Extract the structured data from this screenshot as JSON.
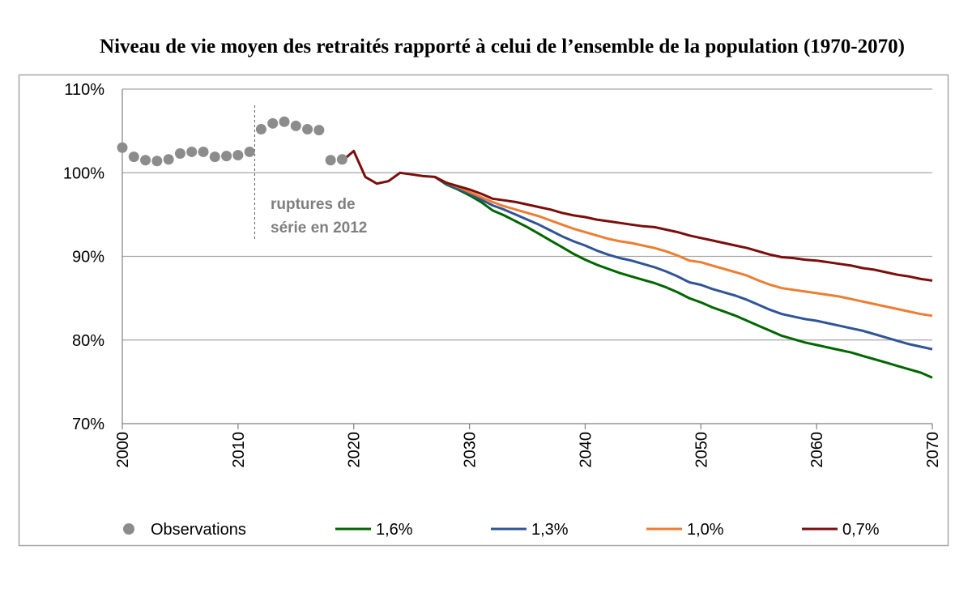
{
  "chart_data": {
    "type": "line",
    "title": "Niveau de vie moyen des retraités rapporté à celui de l’ensemble de la population (1970-2070)",
    "xlabel": "",
    "ylabel": "",
    "xlim": [
      2000,
      2070
    ],
    "ylim": [
      70,
      110
    ],
    "x_ticks": [
      "2000",
      "2010",
      "2020",
      "2030",
      "2040",
      "2050",
      "2060",
      "2070"
    ],
    "y_ticks": [
      "70%",
      "80%",
      "90%",
      "100%",
      "110%"
    ],
    "grid": "horizontal",
    "legend_position": "bottom",
    "annotation": {
      "lines": [
        "ruptures de",
        "série en 2012"
      ],
      "x": 2012
    },
    "observations": {
      "name": "Observations",
      "color": "#8c8c8c",
      "points": [
        [
          2000,
          103.0
        ],
        [
          2001,
          101.9
        ],
        [
          2002,
          101.5
        ],
        [
          2003,
          101.4
        ],
        [
          2004,
          101.6
        ],
        [
          2005,
          102.3
        ],
        [
          2006,
          102.5
        ],
        [
          2007,
          102.5
        ],
        [
          2008,
          101.9
        ],
        [
          2009,
          102.0
        ],
        [
          2010,
          102.1
        ],
        [
          2011,
          102.5
        ],
        [
          2012,
          105.2
        ],
        [
          2013,
          105.9
        ],
        [
          2014,
          106.1
        ],
        [
          2015,
          105.6
        ],
        [
          2016,
          105.2
        ],
        [
          2017,
          105.1
        ],
        [
          2018,
          101.5
        ],
        [
          2019,
          101.6
        ]
      ]
    },
    "series": [
      {
        "name": "1,6%",
        "color": "#006600",
        "points": [
          [
            2027,
            99.5
          ],
          [
            2028,
            98.6
          ],
          [
            2029,
            98.0
          ],
          [
            2030,
            97.3
          ],
          [
            2031,
            96.5
          ],
          [
            2032,
            95.5
          ],
          [
            2033,
            94.9
          ],
          [
            2034,
            94.2
          ],
          [
            2035,
            93.5
          ],
          [
            2036,
            92.7
          ],
          [
            2037,
            91.9
          ],
          [
            2038,
            91.1
          ],
          [
            2039,
            90.3
          ],
          [
            2040,
            89.6
          ],
          [
            2041,
            89.0
          ],
          [
            2042,
            88.5
          ],
          [
            2043,
            88.0
          ],
          [
            2044,
            87.6
          ],
          [
            2045,
            87.2
          ],
          [
            2046,
            86.8
          ],
          [
            2047,
            86.3
          ],
          [
            2048,
            85.7
          ],
          [
            2049,
            85.0
          ],
          [
            2050,
            84.5
          ],
          [
            2051,
            83.9
          ],
          [
            2052,
            83.4
          ],
          [
            2053,
            82.9
          ],
          [
            2054,
            82.3
          ],
          [
            2055,
            81.7
          ],
          [
            2056,
            81.1
          ],
          [
            2057,
            80.5
          ],
          [
            2058,
            80.1
          ],
          [
            2059,
            79.7
          ],
          [
            2060,
            79.4
          ],
          [
            2061,
            79.1
          ],
          [
            2062,
            78.8
          ],
          [
            2063,
            78.5
          ],
          [
            2064,
            78.1
          ],
          [
            2065,
            77.7
          ],
          [
            2066,
            77.3
          ],
          [
            2067,
            76.9
          ],
          [
            2068,
            76.5
          ],
          [
            2069,
            76.1
          ],
          [
            2070,
            75.5
          ]
        ]
      },
      {
        "name": "1,3%",
        "color": "#2f5597",
        "points": [
          [
            2027,
            99.5
          ],
          [
            2028,
            98.7
          ],
          [
            2029,
            98.1
          ],
          [
            2030,
            97.5
          ],
          [
            2031,
            96.8
          ],
          [
            2032,
            96.1
          ],
          [
            2033,
            95.6
          ],
          [
            2034,
            95.0
          ],
          [
            2035,
            94.4
          ],
          [
            2036,
            93.8
          ],
          [
            2037,
            93.1
          ],
          [
            2038,
            92.4
          ],
          [
            2039,
            91.8
          ],
          [
            2040,
            91.3
          ],
          [
            2041,
            90.7
          ],
          [
            2042,
            90.2
          ],
          [
            2043,
            89.8
          ],
          [
            2044,
            89.5
          ],
          [
            2045,
            89.1
          ],
          [
            2046,
            88.7
          ],
          [
            2047,
            88.2
          ],
          [
            2048,
            87.6
          ],
          [
            2049,
            86.9
          ],
          [
            2050,
            86.6
          ],
          [
            2051,
            86.1
          ],
          [
            2052,
            85.7
          ],
          [
            2053,
            85.3
          ],
          [
            2054,
            84.8
          ],
          [
            2055,
            84.2
          ],
          [
            2056,
            83.6
          ],
          [
            2057,
            83.1
          ],
          [
            2058,
            82.8
          ],
          [
            2059,
            82.5
          ],
          [
            2060,
            82.3
          ],
          [
            2061,
            82.0
          ],
          [
            2062,
            81.7
          ],
          [
            2063,
            81.4
          ],
          [
            2064,
            81.1
          ],
          [
            2065,
            80.7
          ],
          [
            2066,
            80.3
          ],
          [
            2067,
            79.9
          ],
          [
            2068,
            79.5
          ],
          [
            2069,
            79.2
          ],
          [
            2070,
            78.9
          ]
        ]
      },
      {
        "name": "1,0%",
        "color": "#ed7d31",
        "points": [
          [
            2027,
            99.5
          ],
          [
            2028,
            98.8
          ],
          [
            2029,
            98.3
          ],
          [
            2030,
            97.7
          ],
          [
            2031,
            97.1
          ],
          [
            2032,
            96.5
          ],
          [
            2033,
            96.0
          ],
          [
            2034,
            95.6
          ],
          [
            2035,
            95.2
          ],
          [
            2036,
            94.8
          ],
          [
            2037,
            94.3
          ],
          [
            2038,
            93.8
          ],
          [
            2039,
            93.3
          ],
          [
            2040,
            92.9
          ],
          [
            2041,
            92.5
          ],
          [
            2042,
            92.1
          ],
          [
            2043,
            91.8
          ],
          [
            2044,
            91.6
          ],
          [
            2045,
            91.3
          ],
          [
            2046,
            91.0
          ],
          [
            2047,
            90.6
          ],
          [
            2048,
            90.1
          ],
          [
            2049,
            89.5
          ],
          [
            2050,
            89.3
          ],
          [
            2051,
            88.9
          ],
          [
            2052,
            88.5
          ],
          [
            2053,
            88.1
          ],
          [
            2054,
            87.7
          ],
          [
            2055,
            87.1
          ],
          [
            2056,
            86.6
          ],
          [
            2057,
            86.2
          ],
          [
            2058,
            86.0
          ],
          [
            2059,
            85.8
          ],
          [
            2060,
            85.6
          ],
          [
            2061,
            85.4
          ],
          [
            2062,
            85.2
          ],
          [
            2063,
            84.9
          ],
          [
            2064,
            84.6
          ],
          [
            2065,
            84.3
          ],
          [
            2066,
            84.0
          ],
          [
            2067,
            83.7
          ],
          [
            2068,
            83.4
          ],
          [
            2069,
            83.1
          ],
          [
            2070,
            82.9
          ]
        ]
      },
      {
        "name": "0,7%",
        "color": "#7b0d0d",
        "points": [
          [
            2019,
            101.4
          ],
          [
            2020,
            102.6
          ],
          [
            2021,
            99.5
          ],
          [
            2022,
            98.7
          ],
          [
            2023,
            99.0
          ],
          [
            2024,
            100.0
          ],
          [
            2025,
            99.8
          ],
          [
            2026,
            99.6
          ],
          [
            2027,
            99.5
          ],
          [
            2028,
            98.8
          ],
          [
            2029,
            98.4
          ],
          [
            2030,
            98.0
          ],
          [
            2031,
            97.5
          ],
          [
            2032,
            96.9
          ],
          [
            2033,
            96.7
          ],
          [
            2034,
            96.5
          ],
          [
            2035,
            96.2
          ],
          [
            2036,
            95.9
          ],
          [
            2037,
            95.6
          ],
          [
            2038,
            95.2
          ],
          [
            2039,
            94.9
          ],
          [
            2040,
            94.7
          ],
          [
            2041,
            94.4
          ],
          [
            2042,
            94.2
          ],
          [
            2043,
            94.0
          ],
          [
            2044,
            93.8
          ],
          [
            2045,
            93.6
          ],
          [
            2046,
            93.5
          ],
          [
            2047,
            93.2
          ],
          [
            2048,
            92.9
          ],
          [
            2049,
            92.5
          ],
          [
            2050,
            92.2
          ],
          [
            2051,
            91.9
          ],
          [
            2052,
            91.6
          ],
          [
            2053,
            91.3
          ],
          [
            2054,
            91.0
          ],
          [
            2055,
            90.6
          ],
          [
            2056,
            90.2
          ],
          [
            2057,
            89.9
          ],
          [
            2058,
            89.8
          ],
          [
            2059,
            89.6
          ],
          [
            2060,
            89.5
          ],
          [
            2061,
            89.3
          ],
          [
            2062,
            89.1
          ],
          [
            2063,
            88.9
          ],
          [
            2064,
            88.6
          ],
          [
            2065,
            88.4
          ],
          [
            2066,
            88.1
          ],
          [
            2067,
            87.8
          ],
          [
            2068,
            87.6
          ],
          [
            2069,
            87.3
          ],
          [
            2070,
            87.1
          ]
        ]
      }
    ]
  }
}
